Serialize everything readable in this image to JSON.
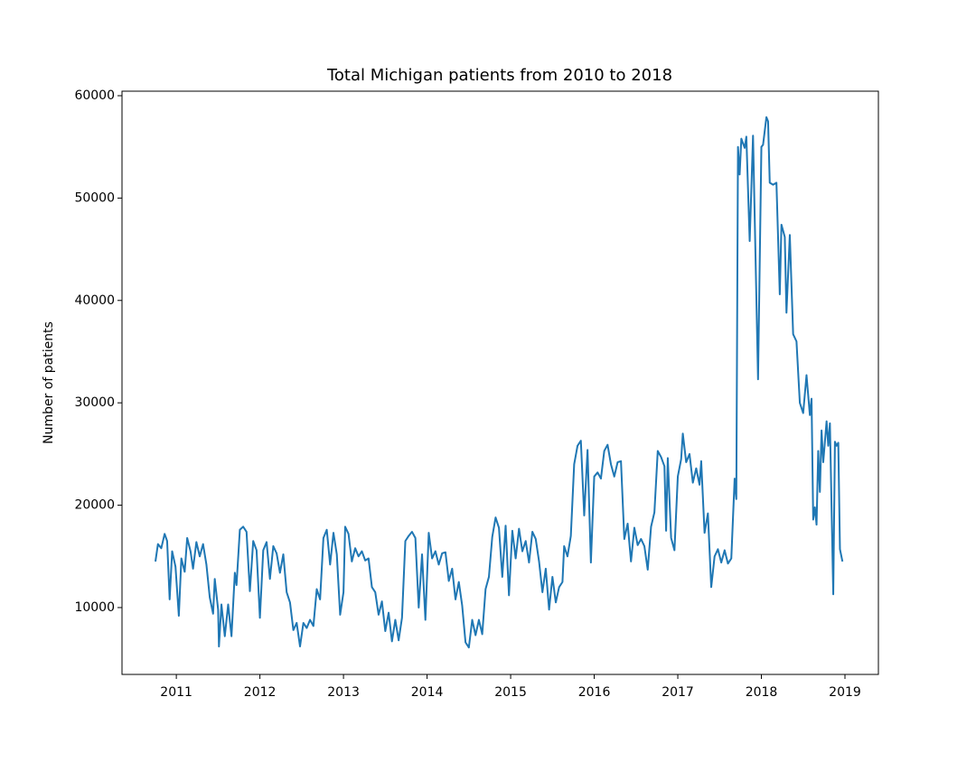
{
  "chart_data": {
    "type": "line",
    "title": "Total Michigan patients from 2010 to 2018",
    "y_label": "Number of patients",
    "x": [
      2010.75,
      2010.78,
      2010.82,
      2010.86,
      2010.89,
      2010.92,
      2010.95,
      2010.99,
      2011.03,
      2011.06,
      2011.1,
      2011.13,
      2011.17,
      2011.2,
      2011.24,
      2011.28,
      2011.32,
      2011.36,
      2011.4,
      2011.44,
      2011.46,
      2011.5,
      2011.51,
      2011.54,
      2011.58,
      2011.62,
      2011.66,
      2011.7,
      2011.72,
      2011.76,
      2011.8,
      2011.84,
      2011.88,
      2011.92,
      2011.96,
      2012.0,
      2012.04,
      2012.08,
      2012.12,
      2012.16,
      2012.2,
      2012.24,
      2012.28,
      2012.32,
      2012.36,
      2012.4,
      2012.44,
      2012.48,
      2012.52,
      2012.56,
      2012.6,
      2012.64,
      2012.68,
      2012.72,
      2012.76,
      2012.8,
      2012.84,
      2012.88,
      2012.92,
      2012.96,
      2013.0,
      2013.02,
      2013.06,
      2013.1,
      2013.14,
      2013.18,
      2013.22,
      2013.26,
      2013.3,
      2013.34,
      2013.38,
      2013.42,
      2013.46,
      2013.5,
      2013.54,
      2013.58,
      2013.62,
      2013.66,
      2013.7,
      2013.74,
      2013.78,
      2013.82,
      2013.86,
      2013.9,
      2013.94,
      2013.98,
      2014.02,
      2014.06,
      2014.1,
      2014.14,
      2014.18,
      2014.22,
      2014.26,
      2014.3,
      2014.34,
      2014.38,
      2014.42,
      2014.46,
      2014.5,
      2014.54,
      2014.58,
      2014.62,
      2014.66,
      2014.7,
      2014.74,
      2014.78,
      2014.82,
      2014.86,
      2014.9,
      2014.94,
      2014.98,
      2015.02,
      2015.06,
      2015.1,
      2015.14,
      2015.18,
      2015.22,
      2015.26,
      2015.3,
      2015.34,
      2015.38,
      2015.42,
      2015.46,
      2015.5,
      2015.54,
      2015.58,
      2015.62,
      2015.64,
      2015.68,
      2015.72,
      2015.76,
      2015.8,
      2015.84,
      2015.88,
      2015.92,
      2015.96,
      2016.0,
      2016.04,
      2016.08,
      2016.12,
      2016.16,
      2016.2,
      2016.24,
      2016.28,
      2016.32,
      2016.36,
      2016.4,
      2016.44,
      2016.48,
      2016.52,
      2016.56,
      2016.6,
      2016.64,
      2016.68,
      2016.72,
      2016.76,
      2016.8,
      2016.84,
      2016.86,
      2016.88,
      2016.92,
      2016.96,
      2017.0,
      2017.04,
      2017.06,
      2017.1,
      2017.14,
      2017.18,
      2017.22,
      2017.26,
      2017.28,
      2017.32,
      2017.36,
      2017.4,
      2017.44,
      2017.48,
      2017.52,
      2017.56,
      2017.6,
      2017.64,
      2017.68,
      2017.7,
      2017.72,
      2017.74,
      2017.76,
      2017.8,
      2017.82,
      2017.86,
      2017.9,
      2017.96,
      2018.0,
      2018.02,
      2018.06,
      2018.08,
      2018.1,
      2018.14,
      2018.18,
      2018.22,
      2018.24,
      2018.28,
      2018.3,
      2018.34,
      2018.38,
      2018.42,
      2018.46,
      2018.5,
      2018.54,
      2018.58,
      2018.6,
      2018.62,
      2018.64,
      2018.66,
      2018.68,
      2018.7,
      2018.72,
      2018.74,
      2018.78,
      2018.8,
      2018.82,
      2018.86,
      2018.88,
      2018.9,
      2018.92,
      2018.94,
      2018.97
    ],
    "series": [
      {
        "color": "#1f77b4",
        "values": [
          14500,
          16200,
          15800,
          17200,
          16500,
          10800,
          15500,
          14000,
          9200,
          14800,
          13500,
          16800,
          15500,
          13800,
          16400,
          15000,
          16200,
          14200,
          11000,
          9400,
          12800,
          9800,
          6200,
          10300,
          7200,
          10300,
          7200,
          13400,
          12200,
          17600,
          17900,
          17400,
          11600,
          16500,
          15600,
          9000,
          15600,
          16400,
          12800,
          16000,
          15300,
          13400,
          15200,
          11500,
          10500,
          7800,
          8500,
          6200,
          8500,
          8000,
          8800,
          8200,
          11800,
          10800,
          16800,
          17600,
          14200,
          17300,
          15200,
          9300,
          11500,
          17900,
          17200,
          14500,
          15800,
          15000,
          15500,
          14600,
          14800,
          12000,
          11500,
          9300,
          10600,
          7700,
          9500,
          6700,
          8800,
          6800,
          9000,
          16500,
          17000,
          17400,
          16800,
          10000,
          15200,
          8800,
          17300,
          14800,
          15500,
          14200,
          15300,
          15400,
          12600,
          13800,
          10800,
          12500,
          10200,
          6600,
          6100,
          8800,
          7300,
          8800,
          7400,
          11800,
          13000,
          16900,
          18800,
          17800,
          13000,
          18000,
          11200,
          17500,
          14800,
          17700,
          15500,
          16500,
          14400,
          17400,
          16700,
          14500,
          11500,
          13800,
          9800,
          13000,
          10500,
          12000,
          12500,
          16000,
          15000,
          17000,
          24000,
          25800,
          26300,
          19000,
          25400,
          14400,
          22800,
          23200,
          22600,
          25300,
          25900,
          24000,
          22800,
          24200,
          24300,
          16700,
          18200,
          14500,
          17800,
          16100,
          16700,
          16000,
          13700,
          17900,
          19300,
          25300,
          24700,
          23800,
          17500,
          24600,
          16800,
          15600,
          22800,
          24500,
          27000,
          24200,
          25000,
          22200,
          23600,
          22000,
          24300,
          17300,
          19200,
          12000,
          15000,
          15700,
          14400,
          15600,
          14300,
          14800,
          22600,
          20600,
          55000,
          52300,
          55800,
          54900,
          56000,
          45800,
          56100,
          32300,
          55000,
          55200,
          57900,
          57500,
          51500,
          51300,
          51500,
          40600,
          47400,
          46200,
          38800,
          46400,
          36700,
          36000,
          30000,
          29000,
          32700,
          28800,
          30400,
          18600,
          19800,
          18100,
          25300,
          21300,
          27300,
          24200,
          28200,
          25800,
          28000,
          11300,
          26200,
          25800,
          26100,
          15700,
          14500
        ]
      }
    ],
    "xlim": [
      2010.35,
      2019.4
    ],
    "xticks": [
      2011,
      2012,
      2013,
      2014,
      2015,
      2016,
      2017,
      2018,
      2019
    ],
    "ylim": [
      3470,
      60440
    ],
    "yticks": [
      10000,
      20000,
      30000,
      40000,
      50000,
      60000
    ]
  }
}
